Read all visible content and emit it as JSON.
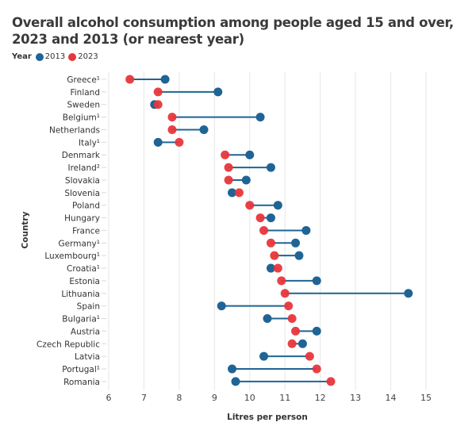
{
  "chart_data": {
    "type": "dumbbell",
    "title": "Overall alcohol consumption among people aged 15 and over, 2023 and 2013 (or nearest year)",
    "legend_title": "Year",
    "legend_position": "top-left",
    "xlabel": "Litres per person",
    "ylabel": "Country",
    "xlim": [
      6,
      15
    ],
    "xticks": [
      "6",
      "7",
      "8",
      "9",
      "10",
      "11",
      "12",
      "13",
      "14",
      "15"
    ],
    "grid": true,
    "series": [
      {
        "name": "2013",
        "color": "#1f6495"
      },
      {
        "name": "2023",
        "color": "#e8363b"
      }
    ],
    "categories": [
      "Greece¹",
      "Finland",
      "Sweden",
      "Belgium¹",
      "Netherlands",
      "Italy¹",
      "Denmark",
      "Ireland²",
      "Slovakia",
      "Slovenia",
      "Poland",
      "Hungary",
      "France",
      "Germany¹",
      "Luxembourg¹",
      "Croatia¹",
      "Estonia",
      "Lithuania",
      "Spain",
      "Bulgaria¹",
      "Austria",
      "Czech Republic",
      "Latvia",
      "Portugal¹",
      "Romania"
    ],
    "values_2013": [
      7.6,
      9.1,
      7.3,
      10.3,
      8.7,
      7.4,
      10.0,
      10.6,
      9.9,
      9.5,
      10.8,
      10.6,
      11.6,
      11.3,
      11.4,
      10.6,
      11.9,
      14.5,
      9.2,
      10.5,
      11.9,
      11.5,
      10.4,
      9.5,
      9.6
    ],
    "values_2023": [
      6.6,
      7.4,
      7.4,
      7.8,
      7.8,
      8.0,
      9.3,
      9.4,
      9.4,
      9.7,
      10.0,
      10.3,
      10.4,
      10.6,
      10.7,
      10.8,
      10.9,
      11.0,
      11.1,
      11.2,
      11.3,
      11.2,
      11.7,
      11.9,
      12.3
    ]
  }
}
